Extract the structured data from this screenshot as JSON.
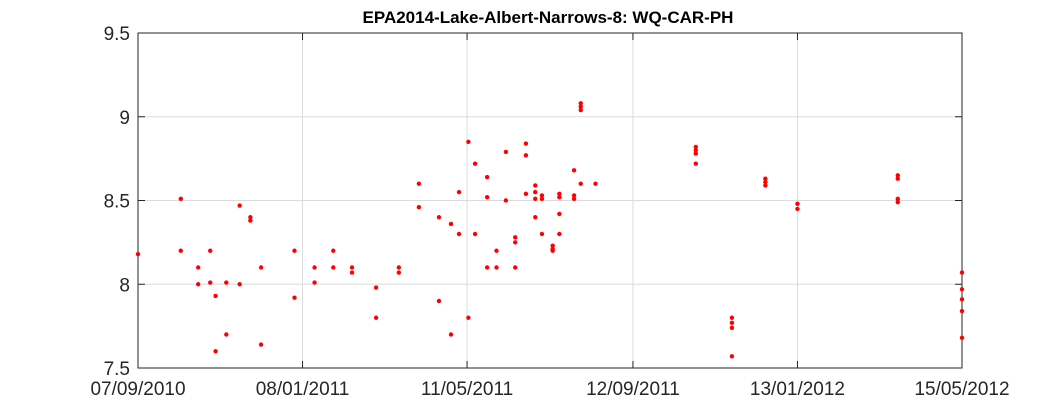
{
  "chart_data": {
    "type": "scatter",
    "title": "EPA2014-Lake-Albert-Narrows-8: WQ-CAR-PH",
    "xlabel": "",
    "ylabel": "",
    "x_axis_type": "date",
    "xlim": [
      "2010-09-07",
      "2012-05-15"
    ],
    "ylim": [
      7.5,
      9.5
    ],
    "x_ticks": [
      "2010-09-07",
      "2011-01-08",
      "2011-05-11",
      "2011-09-12",
      "2012-01-13",
      "2012-05-15"
    ],
    "x_tick_labels": [
      "07/09/2010",
      "08/01/2011",
      "11/05/2011",
      "12/09/2011",
      "13/01/2012",
      "15/05/2012"
    ],
    "y_ticks": [
      7.5,
      8,
      8.5,
      9,
      9.5
    ],
    "y_tick_labels": [
      "7.5",
      "8",
      "8.5",
      "9",
      "9.5"
    ],
    "grid": true,
    "marker_color": "#ff0000",
    "series": [
      {
        "points": [
          [
            "2010-09-07",
            8.18
          ],
          [
            "2010-10-09",
            8.51
          ],
          [
            "2010-10-09",
            8.2
          ],
          [
            "2010-10-22",
            8.1
          ],
          [
            "2010-10-22",
            8.0
          ],
          [
            "2010-10-31",
            8.2
          ],
          [
            "2010-10-31",
            8.01
          ],
          [
            "2010-11-04",
            7.93
          ],
          [
            "2010-11-04",
            7.6
          ],
          [
            "2010-11-12",
            8.01
          ],
          [
            "2010-11-12",
            7.7
          ],
          [
            "2010-11-22",
            8.47
          ],
          [
            "2010-11-22",
            8.0
          ],
          [
            "2010-11-30",
            8.4
          ],
          [
            "2010-11-30",
            8.38
          ],
          [
            "2010-12-08",
            8.1
          ],
          [
            "2010-12-08",
            7.64
          ],
          [
            "2011-01-02",
            8.2
          ],
          [
            "2011-01-02",
            7.92
          ],
          [
            "2011-01-17",
            8.1
          ],
          [
            "2011-01-17",
            8.01
          ],
          [
            "2011-01-31",
            8.2
          ],
          [
            "2011-01-31",
            8.1
          ],
          [
            "2011-02-14",
            8.1
          ],
          [
            "2011-02-14",
            8.07
          ],
          [
            "2011-03-04",
            7.98
          ],
          [
            "2011-03-04",
            7.8
          ],
          [
            "2011-03-21",
            8.1
          ],
          [
            "2011-03-21",
            8.07
          ],
          [
            "2011-04-05",
            8.6
          ],
          [
            "2011-04-05",
            8.46
          ],
          [
            "2011-04-20",
            8.4
          ],
          [
            "2011-04-20",
            7.9
          ],
          [
            "2011-04-29",
            8.36
          ],
          [
            "2011-04-29",
            7.7
          ],
          [
            "2011-05-05",
            8.55
          ],
          [
            "2011-05-05",
            8.3
          ],
          [
            "2011-05-12",
            8.85
          ],
          [
            "2011-05-12",
            7.8
          ],
          [
            "2011-05-17",
            8.72
          ],
          [
            "2011-05-17",
            8.3
          ],
          [
            "2011-05-26",
            8.64
          ],
          [
            "2011-05-26",
            8.52
          ],
          [
            "2011-05-26",
            8.1
          ],
          [
            "2011-06-02",
            8.2
          ],
          [
            "2011-06-02",
            8.1
          ],
          [
            "2011-06-09",
            8.79
          ],
          [
            "2011-06-09",
            8.5
          ],
          [
            "2011-06-16",
            8.28
          ],
          [
            "2011-06-16",
            8.25
          ],
          [
            "2011-06-16",
            8.1
          ],
          [
            "2011-06-24",
            8.84
          ],
          [
            "2011-06-24",
            8.77
          ],
          [
            "2011-06-24",
            8.54
          ],
          [
            "2011-07-01",
            8.59
          ],
          [
            "2011-07-01",
            8.55
          ],
          [
            "2011-07-01",
            8.51
          ],
          [
            "2011-07-01",
            8.4
          ],
          [
            "2011-07-06",
            8.53
          ],
          [
            "2011-07-06",
            8.51
          ],
          [
            "2011-07-06",
            8.3
          ],
          [
            "2011-07-14",
            8.23
          ],
          [
            "2011-07-14",
            8.21
          ],
          [
            "2011-07-14",
            8.2
          ],
          [
            "2011-07-19",
            8.54
          ],
          [
            "2011-07-19",
            8.52
          ],
          [
            "2011-07-19",
            8.42
          ],
          [
            "2011-07-19",
            8.3
          ],
          [
            "2011-07-30",
            8.68
          ],
          [
            "2011-07-30",
            8.53
          ],
          [
            "2011-07-30",
            8.51
          ],
          [
            "2011-08-04",
            9.08
          ],
          [
            "2011-08-04",
            9.06
          ],
          [
            "2011-08-04",
            9.04
          ],
          [
            "2011-08-04",
            8.6
          ],
          [
            "2011-08-15",
            8.6
          ],
          [
            "2011-10-29",
            8.82
          ],
          [
            "2011-10-29",
            8.8
          ],
          [
            "2011-10-29",
            8.78
          ],
          [
            "2011-10-29",
            8.72
          ],
          [
            "2011-11-25",
            7.8
          ],
          [
            "2011-11-25",
            7.77
          ],
          [
            "2011-11-25",
            7.74
          ],
          [
            "2011-11-25",
            7.57
          ],
          [
            "2011-12-20",
            8.63
          ],
          [
            "2011-12-20",
            8.61
          ],
          [
            "2011-12-20",
            8.59
          ],
          [
            "2012-01-13",
            8.48
          ],
          [
            "2012-01-13",
            8.45
          ],
          [
            "2012-03-28",
            8.65
          ],
          [
            "2012-03-28",
            8.63
          ],
          [
            "2012-03-28",
            8.51
          ],
          [
            "2012-03-28",
            8.49
          ],
          [
            "2012-05-15",
            8.07
          ],
          [
            "2012-05-15",
            7.97
          ],
          [
            "2012-05-15",
            7.91
          ],
          [
            "2012-05-15",
            7.84
          ],
          [
            "2012-05-15",
            7.68
          ]
        ]
      }
    ]
  }
}
